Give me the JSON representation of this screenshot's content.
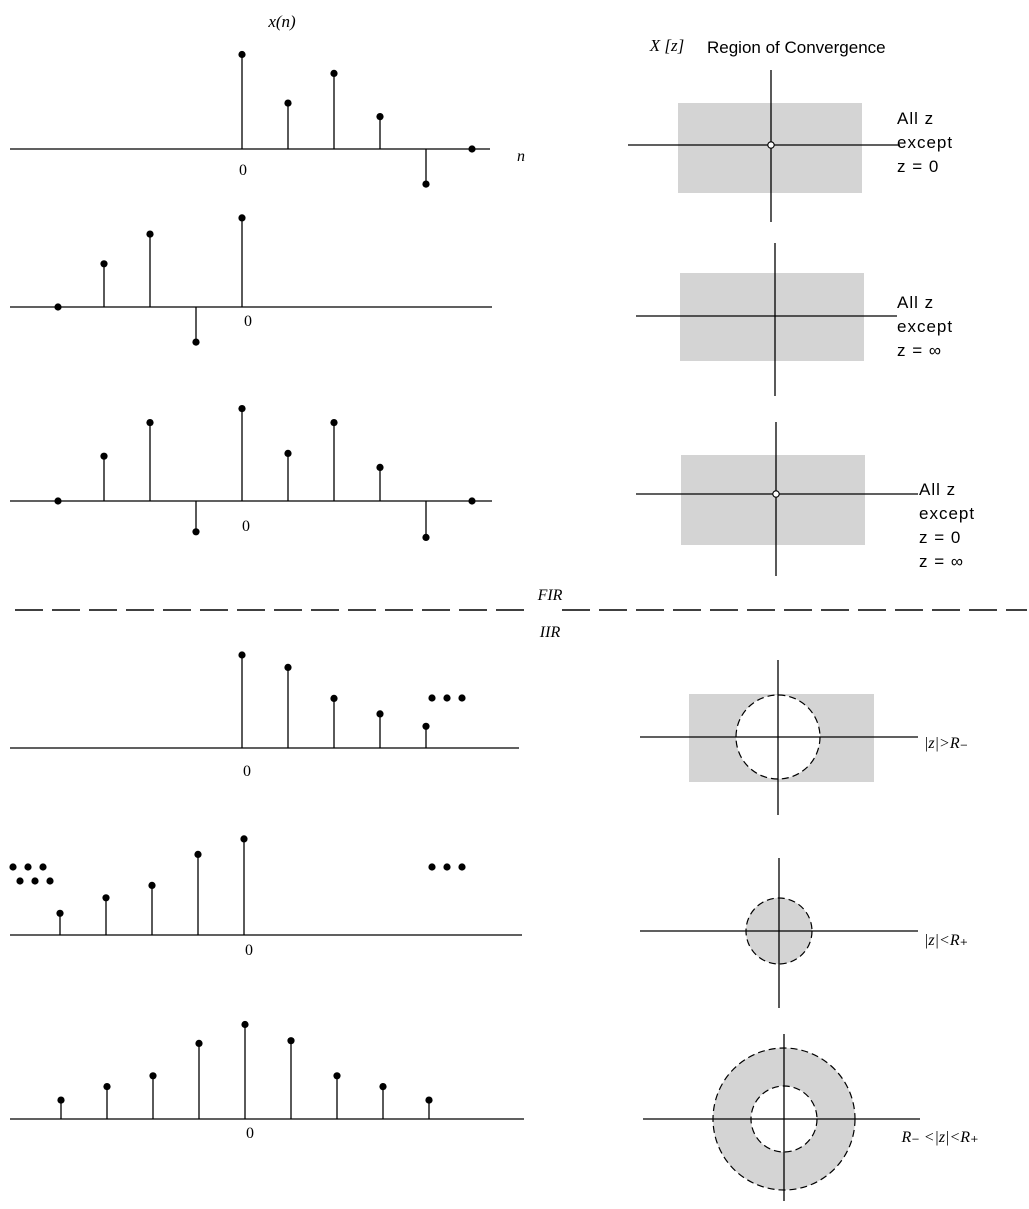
{
  "header": {
    "signal_label": "x(n)",
    "transform_label": "X [z]",
    "roc_heading": "Region of Convergence"
  },
  "axis_labels": {
    "n": "n",
    "zero": "0"
  },
  "divider": {
    "fir_label": "FIR",
    "iir_label": "IIR"
  },
  "ellipsis": "• • •",
  "rows": [
    {
      "id": "fir-causal",
      "group": "FIR",
      "stems": [
        {
          "n": 0,
          "value": 3.5
        },
        {
          "n": 1,
          "value": 1.7
        },
        {
          "n": 2,
          "value": 2.8
        },
        {
          "n": 3,
          "value": 1.2
        },
        {
          "n": 4,
          "value": -1.3
        },
        {
          "n": 5,
          "value": 0
        }
      ],
      "left_ellipsis": false,
      "right_ellipsis": false,
      "roc": {
        "region": "plane",
        "origin_marker": true,
        "caption_lines": [
          "All z",
          "except",
          "z = 0"
        ]
      }
    },
    {
      "id": "fir-anticausal",
      "group": "FIR",
      "stems": [
        {
          "n": -4,
          "value": 0
        },
        {
          "n": -3,
          "value": 1.6
        },
        {
          "n": -2,
          "value": 2.7
        },
        {
          "n": -1,
          "value": -1.3
        },
        {
          "n": 0,
          "value": 3.3
        }
      ],
      "left_ellipsis": false,
      "right_ellipsis": false,
      "roc": {
        "region": "plane",
        "origin_marker": false,
        "caption_lines": [
          "All z",
          "except",
          "z = ∞"
        ]
      }
    },
    {
      "id": "fir-two-sided",
      "group": "FIR",
      "stems": [
        {
          "n": -4,
          "value": 0
        },
        {
          "n": -3,
          "value": 1.6
        },
        {
          "n": -2,
          "value": 2.8
        },
        {
          "n": -1,
          "value": -1.1
        },
        {
          "n": 0,
          "value": 3.3
        },
        {
          "n": 1,
          "value": 1.7
        },
        {
          "n": 2,
          "value": 2.8
        },
        {
          "n": 3,
          "value": 1.2
        },
        {
          "n": 4,
          "value": -1.3
        },
        {
          "n": 5,
          "value": 0
        }
      ],
      "left_ellipsis": false,
      "right_ellipsis": false,
      "roc": {
        "region": "plane",
        "origin_marker": true,
        "caption_lines": [
          "All z",
          "except",
          "z = 0",
          "z = ∞"
        ]
      }
    },
    {
      "id": "iir-causal",
      "group": "IIR",
      "stems": [
        {
          "n": 0,
          "value": 3.0
        },
        {
          "n": 1,
          "value": 2.6
        },
        {
          "n": 2,
          "value": 1.6
        },
        {
          "n": 3,
          "value": 1.1
        },
        {
          "n": 4,
          "value": 0.7
        }
      ],
      "left_ellipsis": false,
      "right_ellipsis": true,
      "roc": {
        "region": "exterior",
        "origin_marker": false,
        "caption_lines": [
          "|z|>R₋"
        ]
      }
    },
    {
      "id": "iir-anticausal",
      "group": "IIR",
      "stems": [
        {
          "n": -4,
          "value": 0.7
        },
        {
          "n": -3,
          "value": 1.2
        },
        {
          "n": -2,
          "value": 1.6
        },
        {
          "n": -1,
          "value": 2.6
        },
        {
          "n": 0,
          "value": 3.1
        }
      ],
      "left_ellipsis": true,
      "right_ellipsis": false,
      "roc": {
        "region": "disk",
        "origin_marker": false,
        "caption_lines": [
          "|z|<R₊"
        ]
      }
    },
    {
      "id": "iir-two-sided",
      "group": "IIR",
      "stems": [
        {
          "n": -4,
          "value": 0.7
        },
        {
          "n": -3,
          "value": 1.2
        },
        {
          "n": -2,
          "value": 1.6
        },
        {
          "n": -1,
          "value": 2.8
        },
        {
          "n": 0,
          "value": 3.5
        },
        {
          "n": 1,
          "value": 2.9
        },
        {
          "n": 2,
          "value": 1.6
        },
        {
          "n": 3,
          "value": 1.2
        },
        {
          "n": 4,
          "value": 0.7
        }
      ],
      "left_ellipsis": true,
      "right_ellipsis": true,
      "roc": {
        "region": "annulus",
        "origin_marker": false,
        "caption_lines": [
          "R₋ <|z|<R₊"
        ]
      }
    }
  ]
}
